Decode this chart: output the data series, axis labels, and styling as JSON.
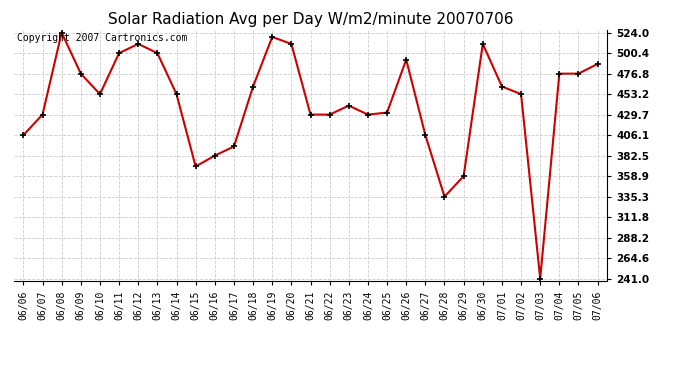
{
  "title": "Solar Radiation Avg per Day W/m2/minute 20070706",
  "copyright_text": "Copyright 2007 Cartronics.com",
  "dates": [
    "06/06",
    "06/07",
    "06/08",
    "06/09",
    "06/10",
    "06/11",
    "06/12",
    "06/13",
    "06/14",
    "06/15",
    "06/16",
    "06/17",
    "06/18",
    "06/19",
    "06/20",
    "06/21",
    "06/22",
    "06/23",
    "06/24",
    "06/25",
    "06/26",
    "06/27",
    "06/28",
    "06/29",
    "06/30",
    "07/01",
    "07/02",
    "07/03",
    "07/04",
    "07/05",
    "07/06"
  ],
  "values": [
    406.1,
    429.7,
    524.0,
    476.8,
    453.2,
    500.4,
    511.0,
    500.4,
    453.2,
    370.0,
    382.5,
    393.0,
    462.0,
    519.0,
    511.0,
    429.7,
    429.7,
    440.0,
    429.7,
    432.0,
    493.0,
    406.1,
    335.3,
    358.9,
    511.0,
    462.0,
    453.2,
    241.0,
    476.8,
    476.8,
    488.0
  ],
  "line_color": "#cc0000",
  "marker": "+",
  "marker_color": "#000000",
  "marker_size": 5,
  "line_width": 1.5,
  "yticks": [
    241.0,
    264.6,
    288.2,
    311.8,
    335.3,
    358.9,
    382.5,
    406.1,
    429.7,
    453.2,
    476.8,
    500.4,
    524.0
  ],
  "ymin": 241.0,
  "ymax": 524.0,
  "bg_color": "#ffffff",
  "grid_color": "#cccccc",
  "title_fontsize": 11,
  "copyright_fontsize": 7,
  "tick_fontsize": 7,
  "ytick_fontsize": 7.5
}
